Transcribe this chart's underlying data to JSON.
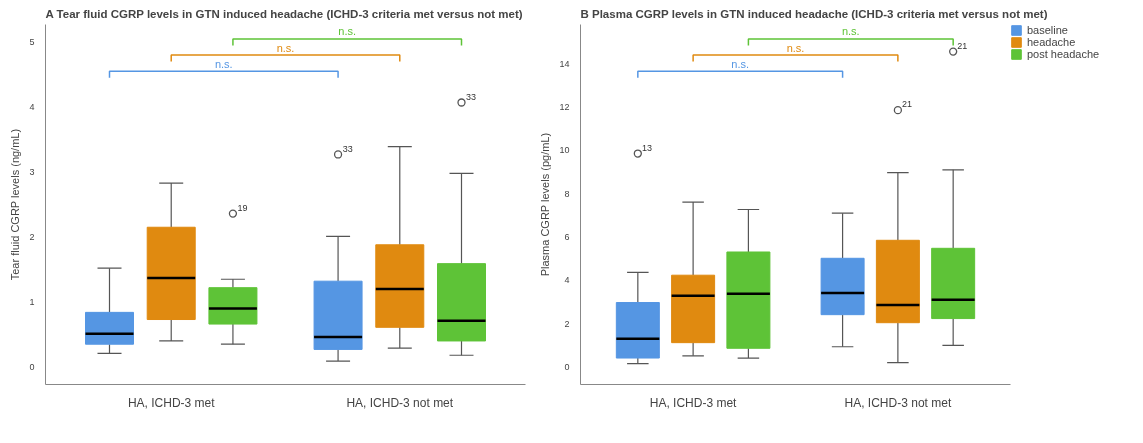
{
  "chart_data": [
    {
      "type": "box",
      "title": "A Tear fluid CGRP levels in GTN induced headache (ICHD-3 criteria met versus not met)",
      "ylabel": "Tear fluid CGRP levels (ng/mL)",
      "categories": [
        "HA, ICHD-3 met",
        "HA, ICHD-3 not met"
      ],
      "ylim": [
        -0.27,
        5.27
      ],
      "yticks": [
        0,
        1,
        2,
        3,
        4,
        5
      ],
      "grid": false,
      "series": [
        {
          "color": "#5596e3",
          "boxes": [
            {
              "low": 0.21,
              "q1": 0.35,
              "median": 0.51,
              "q3": 0.84,
              "high": 1.52
            },
            {
              "low": 0.09,
              "q1": 0.27,
              "median": 0.46,
              "q3": 1.32,
              "high": 2.01,
              "outliers": [
                3.27
              ]
            }
          ]
        },
        {
          "color": "#e08a10",
          "boxes": [
            {
              "low": 0.4,
              "q1": 0.73,
              "median": 1.37,
              "q3": 2.15,
              "high": 2.83
            },
            {
              "low": 0.29,
              "q1": 0.61,
              "median": 1.2,
              "q3": 1.88,
              "high": 3.39
            }
          ]
        },
        {
          "color": "#5ec337",
          "boxes": [
            {
              "low": 0.35,
              "q1": 0.66,
              "median": 0.9,
              "q3": 1.22,
              "high": 1.35,
              "outliers": [
                2.36
              ]
            },
            {
              "low": 0.18,
              "q1": 0.4,
              "median": 0.71,
              "q3": 1.59,
              "high": 2.98,
              "outliers": [
                4.07
              ]
            }
          ]
        }
      ],
      "annotations": [
        "n.s.",
        "n.s.",
        "n.s.",
        "19",
        "33",
        "33"
      ]
    },
    {
      "type": "box",
      "title": "B Plasma CGRP levels in GTN induced headache (ICHD-3 criteria met versus not met)",
      "ylabel": "Plasma CGRP levels (pg/mL)",
      "categories": [
        "HA, ICHD-3 met",
        "HA, ICHD-3 not met"
      ],
      "ylim": [
        -0.8,
        15.8
      ],
      "yticks": [
        0,
        2,
        4,
        6,
        8,
        10,
        12,
        14
      ],
      "grid": false,
      "legend": "top right",
      "series": [
        {
          "name": "baseline",
          "color": "#5596e3",
          "boxes": [
            {
              "low": 0.16,
              "q1": 0.42,
              "median": 1.31,
              "q3": 2.98,
              "high": 4.37,
              "outliers": [
                9.85
              ]
            },
            {
              "low": 0.94,
              "q1": 2.42,
              "median": 3.42,
              "q3": 5.02,
              "high": 7.1
            }
          ]
        },
        {
          "name": "headache",
          "color": "#e08a10",
          "boxes": [
            {
              "low": 0.52,
              "q1": 1.13,
              "median": 3.29,
              "q3": 4.24,
              "high": 7.61
            },
            {
              "low": 0.21,
              "q1": 2.05,
              "median": 2.87,
              "q3": 5.85,
              "high": 8.97,
              "outliers": [
                11.85
              ]
            }
          ]
        },
        {
          "name": "post headache",
          "color": "#5ec337",
          "boxes": [
            {
              "low": 0.42,
              "q1": 0.87,
              "median": 3.39,
              "q3": 5.31,
              "high": 7.27
            },
            {
              "low": 1.0,
              "q1": 2.24,
              "median": 3.11,
              "q3": 5.48,
              "high": 9.1,
              "outliers": [
                14.55
              ]
            }
          ]
        }
      ],
      "annotations": [
        "n.s.",
        "n.s.",
        "n.s.",
        "13",
        "21",
        "21"
      ]
    }
  ]
}
